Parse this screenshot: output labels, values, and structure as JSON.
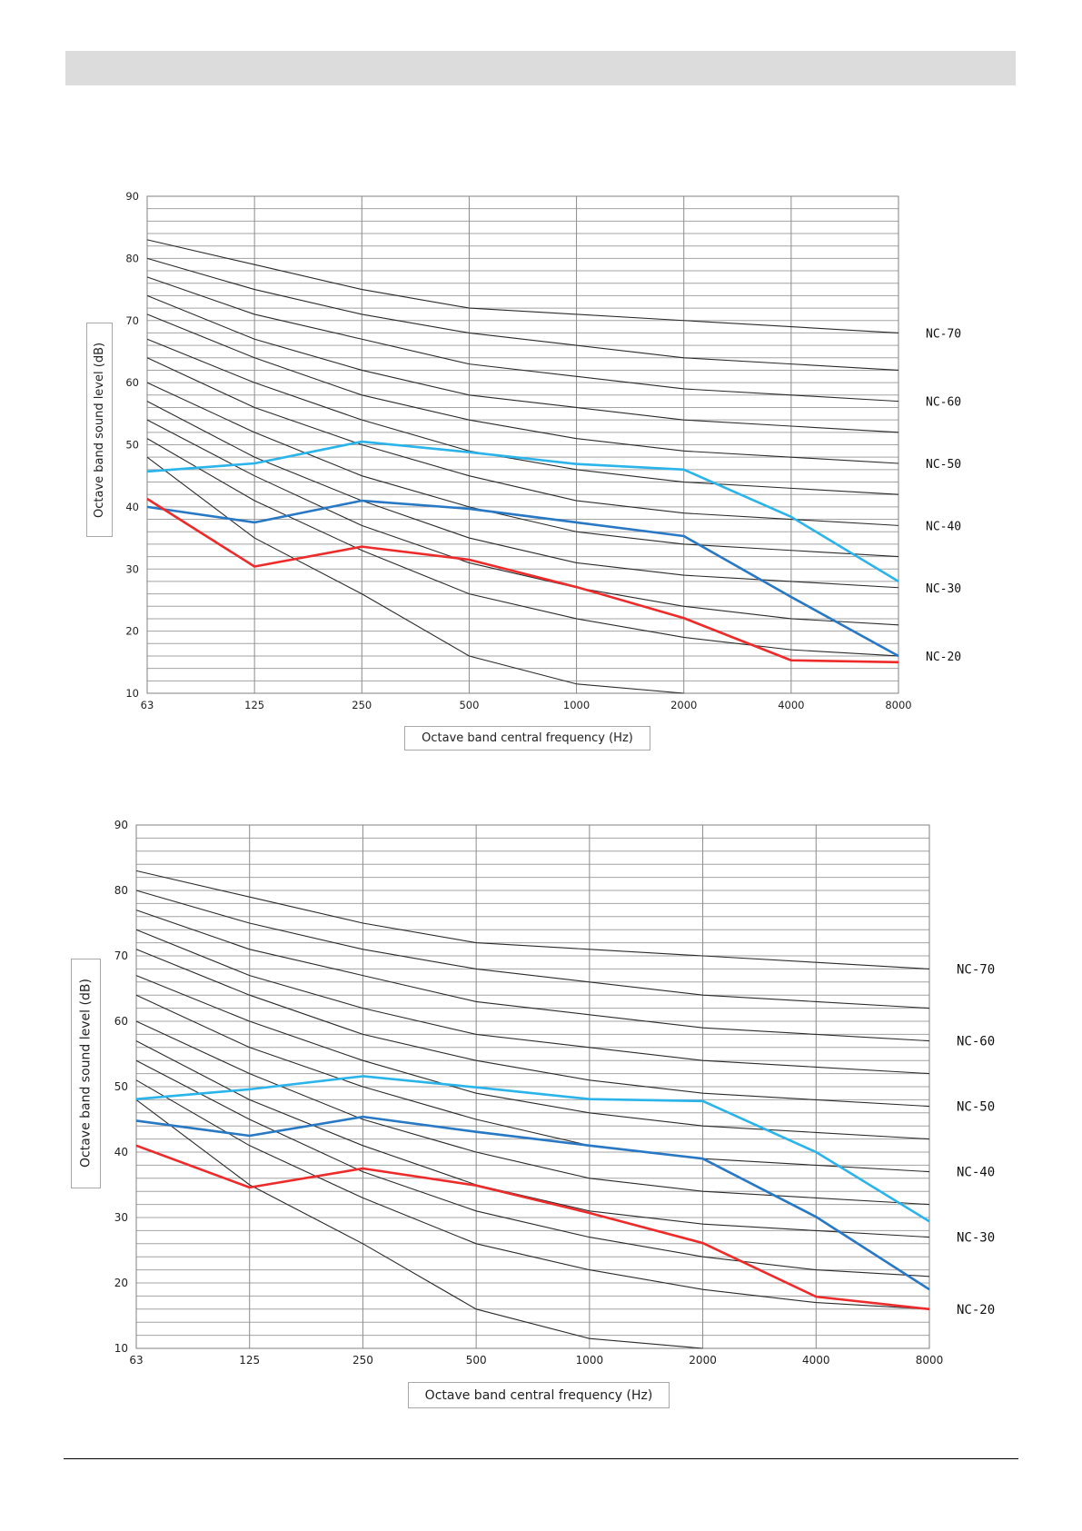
{
  "header": {
    "background": "#dcdcdc"
  },
  "chart_data": [
    {
      "type": "line",
      "xlabel": "Octave band central frequency (Hz)",
      "ylabel": "Octave band sound level (dB)",
      "categories": [
        "63",
        "125",
        "250",
        "500",
        "1000",
        "2000",
        "4000",
        "8000"
      ],
      "x_scale": "log",
      "ylim": [
        10,
        90
      ],
      "y_ticks": [
        10,
        20,
        30,
        40,
        50,
        60,
        70,
        80,
        90
      ],
      "grid": true,
      "reference_curves": [
        {
          "name": "NC-70",
          "values": [
            83,
            79,
            75,
            72,
            71,
            70,
            69,
            68
          ]
        },
        {
          "values": [
            80,
            75,
            71,
            68,
            66,
            64,
            63,
            62
          ]
        },
        {
          "name": "NC-60",
          "values": [
            77,
            71,
            67,
            63,
            61,
            59,
            58,
            57
          ]
        },
        {
          "values": [
            74,
            67,
            62,
            58,
            56,
            54,
            53,
            52
          ]
        },
        {
          "name": "NC-50",
          "values": [
            71,
            64,
            58,
            54,
            51,
            49,
            48,
            47
          ]
        },
        {
          "values": [
            67,
            60,
            54,
            49,
            46,
            44,
            43,
            42
          ]
        },
        {
          "name": "NC-40",
          "values": [
            64,
            56,
            50,
            45,
            41,
            39,
            38,
            37
          ]
        },
        {
          "values": [
            60,
            52,
            45,
            40,
            36,
            34,
            33,
            32
          ]
        },
        {
          "name": "NC-30",
          "values": [
            57,
            48,
            41,
            35,
            31,
            29,
            28,
            27
          ]
        },
        {
          "values": [
            54,
            45,
            37,
            31,
            27,
            24,
            22,
            21
          ]
        },
        {
          "name": "NC-20",
          "values": [
            51,
            41,
            33,
            26,
            22,
            19,
            17,
            16
          ]
        },
        {
          "values": [
            48,
            35,
            26,
            16,
            11.5,
            10,
            null,
            null
          ]
        }
      ],
      "series": [
        {
          "color": "#2ab4ea",
          "values": [
            45.7,
            47,
            50.5,
            48.8,
            46.9,
            46,
            38.4,
            28
          ]
        },
        {
          "color": "#2878c4",
          "values": [
            40,
            37.5,
            41,
            39.7,
            37.5,
            35.3,
            25.5,
            16
          ]
        },
        {
          "color": "#ee2b2b",
          "values": [
            41.3,
            30.4,
            33.6,
            31.5,
            27.1,
            22.1,
            15.3,
            15
          ]
        }
      ]
    },
    {
      "type": "line",
      "xlabel": "Octave band central frequency (Hz)",
      "ylabel": "Octave band sound level (dB)",
      "categories": [
        "63",
        "125",
        "250",
        "500",
        "1000",
        "2000",
        "4000",
        "8000"
      ],
      "x_scale": "log",
      "ylim": [
        10,
        90
      ],
      "y_ticks": [
        10,
        20,
        30,
        40,
        50,
        60,
        70,
        80,
        90
      ],
      "grid": true,
      "reference_curves": [
        {
          "name": "NC-70",
          "values": [
            83,
            79,
            75,
            72,
            71,
            70,
            69,
            68
          ]
        },
        {
          "values": [
            80,
            75,
            71,
            68,
            66,
            64,
            63,
            62
          ]
        },
        {
          "name": "NC-60",
          "values": [
            77,
            71,
            67,
            63,
            61,
            59,
            58,
            57
          ]
        },
        {
          "values": [
            74,
            67,
            62,
            58,
            56,
            54,
            53,
            52
          ]
        },
        {
          "name": "NC-50",
          "values": [
            71,
            64,
            58,
            54,
            51,
            49,
            48,
            47
          ]
        },
        {
          "values": [
            67,
            60,
            54,
            49,
            46,
            44,
            43,
            42
          ]
        },
        {
          "name": "NC-40",
          "values": [
            64,
            56,
            50,
            45,
            41,
            39,
            38,
            37
          ]
        },
        {
          "values": [
            60,
            52,
            45,
            40,
            36,
            34,
            33,
            32
          ]
        },
        {
          "name": "NC-30",
          "values": [
            57,
            48,
            41,
            35,
            31,
            29,
            28,
            27
          ]
        },
        {
          "values": [
            54,
            45,
            37,
            31,
            27,
            24,
            22,
            21
          ]
        },
        {
          "name": "NC-20",
          "values": [
            51,
            41,
            33,
            26,
            22,
            19,
            17,
            16
          ]
        },
        {
          "values": [
            48,
            35,
            26,
            16,
            11.5,
            10,
            null,
            null
          ]
        }
      ],
      "series": [
        {
          "color": "#2ab4ea",
          "values": [
            48.1,
            49.6,
            51.6,
            49.9,
            48.1,
            47.8,
            40,
            29.4
          ]
        },
        {
          "color": "#2878c4",
          "values": [
            44.8,
            42.5,
            45.4,
            43.1,
            41,
            39,
            30.1,
            19
          ]
        },
        {
          "color": "#ee2b2b",
          "values": [
            41,
            34.6,
            37.5,
            34.9,
            30.7,
            26.1,
            17.9,
            16
          ]
        }
      ]
    }
  ]
}
